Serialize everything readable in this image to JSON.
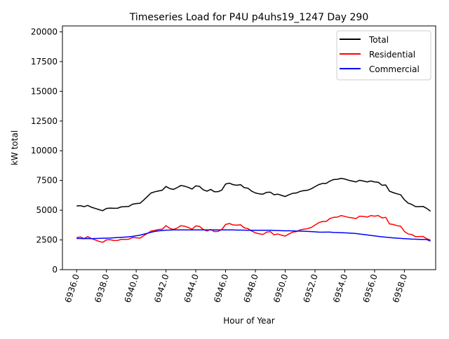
{
  "chart_data": {
    "type": "line",
    "title": "Timeseries Load for P4U p4uhs19_1247  Day 290",
    "xlabel": "Hour of Year",
    "ylabel": "kW total",
    "xlim": [
      6935.05,
      6960.1
    ],
    "ylim": [
      0,
      20500
    ],
    "x_start": 6936.0,
    "x_step": 0.25,
    "xticks": [
      6936,
      6938,
      6940,
      6942,
      6944,
      6946,
      6948,
      6950,
      6952,
      6954,
      6956,
      6958
    ],
    "xtick_labels": [
      "6936.0",
      "6938.0",
      "6940.0",
      "6942.0",
      "6944.0",
      "6946.0",
      "6948.0",
      "6950.0",
      "6952.0",
      "6954.0",
      "6956.0",
      "6958.0"
    ],
    "yticks": [
      0,
      2500,
      5000,
      7500,
      10000,
      12500,
      15000,
      17500,
      20000
    ],
    "ytick_labels": [
      "0",
      "2500",
      "5000",
      "7500",
      "10000",
      "12500",
      "15000",
      "17500",
      "20000"
    ],
    "legend_position": "top-right",
    "series": [
      {
        "name": "Total",
        "color": "#000000",
        "values": [
          5350,
          5380,
          5300,
          5400,
          5250,
          5150,
          5050,
          4960,
          5150,
          5180,
          5160,
          5170,
          5280,
          5300,
          5320,
          5500,
          5560,
          5580,
          5850,
          6150,
          6450,
          6550,
          6620,
          6680,
          7000,
          6820,
          6750,
          6900,
          7080,
          7020,
          6920,
          6780,
          7050,
          7000,
          6720,
          6600,
          6750,
          6550,
          6560,
          6700,
          7200,
          7280,
          7150,
          7100,
          7150,
          6900,
          6850,
          6600,
          6450,
          6380,
          6350,
          6500,
          6520,
          6300,
          6350,
          6250,
          6150,
          6300,
          6420,
          6450,
          6580,
          6650,
          6680,
          6800,
          6980,
          7150,
          7250,
          7250,
          7450,
          7580,
          7600,
          7680,
          7620,
          7520,
          7450,
          7380,
          7520,
          7450,
          7380,
          7460,
          7380,
          7350,
          7100,
          7120,
          6600,
          6480,
          6380,
          6300,
          5880,
          5600,
          5480,
          5300,
          5300,
          5320,
          5150,
          4920
        ]
      },
      {
        "name": "Residential",
        "color": "#ff0000",
        "values": [
          2700,
          2750,
          2620,
          2780,
          2620,
          2500,
          2380,
          2300,
          2500,
          2520,
          2450,
          2460,
          2550,
          2540,
          2560,
          2700,
          2680,
          2650,
          2850,
          3050,
          3250,
          3300,
          3380,
          3400,
          3700,
          3480,
          3380,
          3500,
          3700,
          3650,
          3550,
          3400,
          3680,
          3640,
          3380,
          3250,
          3380,
          3200,
          3220,
          3380,
          3800,
          3880,
          3760,
          3740,
          3780,
          3520,
          3450,
          3250,
          3100,
          3020,
          2960,
          3150,
          3200,
          2930,
          3000,
          2900,
          2820,
          3000,
          3150,
          3200,
          3350,
          3400,
          3450,
          3550,
          3750,
          3950,
          4050,
          4050,
          4300,
          4400,
          4420,
          4550,
          4480,
          4400,
          4350,
          4300,
          4500,
          4480,
          4420,
          4550,
          4500,
          4550,
          4350,
          4400,
          3850,
          3800,
          3700,
          3650,
          3220,
          3000,
          2950,
          2780,
          2780,
          2800,
          2600,
          2500
        ]
      },
      {
        "name": "Commercial",
        "color": "#0000ff",
        "values": [
          2620,
          2620,
          2610,
          2620,
          2610,
          2620,
          2630,
          2640,
          2650,
          2660,
          2680,
          2700,
          2720,
          2740,
          2760,
          2800,
          2850,
          2900,
          2980,
          3060,
          3140,
          3220,
          3260,
          3290,
          3320,
          3330,
          3340,
          3340,
          3340,
          3340,
          3340,
          3340,
          3340,
          3340,
          3340,
          3340,
          3340,
          3340,
          3340,
          3340,
          3340,
          3340,
          3340,
          3330,
          3330,
          3320,
          3310,
          3310,
          3310,
          3310,
          3310,
          3310,
          3310,
          3300,
          3290,
          3280,
          3270,
          3270,
          3260,
          3250,
          3240,
          3230,
          3220,
          3200,
          3180,
          3160,
          3150,
          3160,
          3160,
          3130,
          3120,
          3110,
          3100,
          3080,
          3060,
          3040,
          3000,
          2960,
          2920,
          2880,
          2840,
          2800,
          2760,
          2730,
          2700,
          2670,
          2650,
          2630,
          2610,
          2590,
          2570,
          2560,
          2550,
          2540,
          2530,
          2400
        ]
      }
    ]
  }
}
